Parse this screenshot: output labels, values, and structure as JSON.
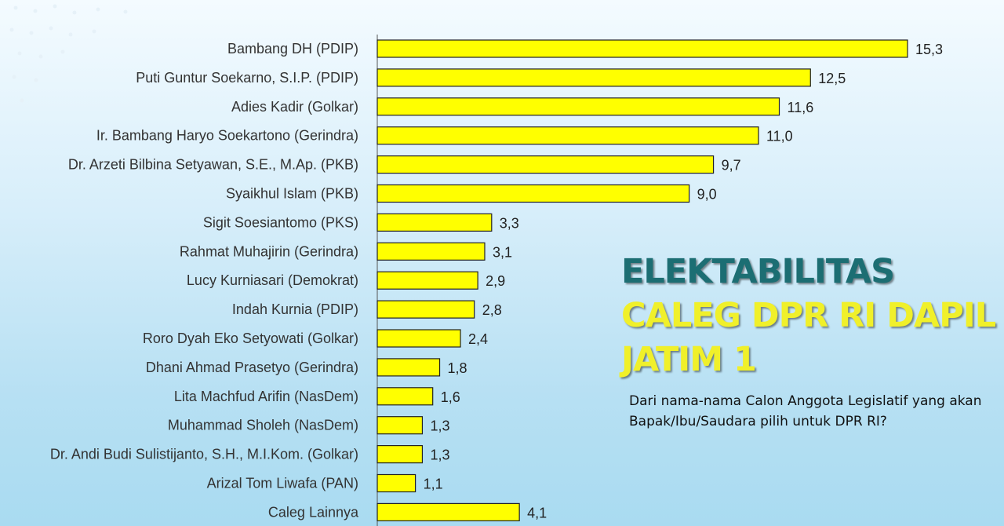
{
  "title": {
    "line1": "ELEKTABILITAS",
    "line2": "CALEG DPR RI DAPIL",
    "line3": "JATIM 1"
  },
  "question": "Dari nama-nama Calon Anggota Legislatif  yang akan Bapak/Ibu/Saudara pilih untuk DPR RI?",
  "colors": {
    "bar": "#ffff00",
    "title_dark": "#1c6e73",
    "title_yellow": "#f0f02a"
  },
  "chart_data": {
    "type": "bar",
    "orientation": "horizontal",
    "categories": [
      "Bambang DH (PDIP)",
      "Puti Guntur Soekarno, S.I.P. (PDIP)",
      "Adies Kadir (Golkar)",
      "Ir. Bambang Haryo Soekartono (Gerindra)",
      "Dr. Arzeti Bilbina Setyawan, S.E., M.Ap. (PKB)",
      "Syaikhul Islam (PKB)",
      "Sigit Soesiantomo (PKS)",
      "Rahmat Muhajirin (Gerindra)",
      "Lucy Kurniasari (Demokrat)",
      "Indah Kurnia (PDIP)",
      "Roro Dyah Eko Setyowati (Golkar)",
      "Dhani Ahmad Prasetyo (Gerindra)",
      "Lita Machfud Arifin (NasDem)",
      "Muhammad Sholeh (NasDem)",
      "Dr. Andi Budi Sulistijanto, S.H., M.I.Kom. (Golkar)",
      "Arizal Tom Liwafa (PAN)",
      "Caleg Lainnya"
    ],
    "values": [
      15.3,
      12.5,
      11.6,
      11.0,
      9.7,
      9.0,
      3.3,
      3.1,
      2.9,
      2.8,
      2.4,
      1.8,
      1.6,
      1.3,
      1.3,
      1.1,
      4.1
    ],
    "value_labels": [
      "15,3",
      "12,5",
      "11,6",
      "11,0",
      "9,7",
      "9,0",
      "3,3",
      "3,1",
      "2,9",
      "2,8",
      "2,4",
      "1,8",
      "1,6",
      "1,3",
      "1,3",
      "1,1",
      "4,1"
    ],
    "xlim": [
      0,
      15.3
    ],
    "grid": false,
    "legend": "none"
  }
}
